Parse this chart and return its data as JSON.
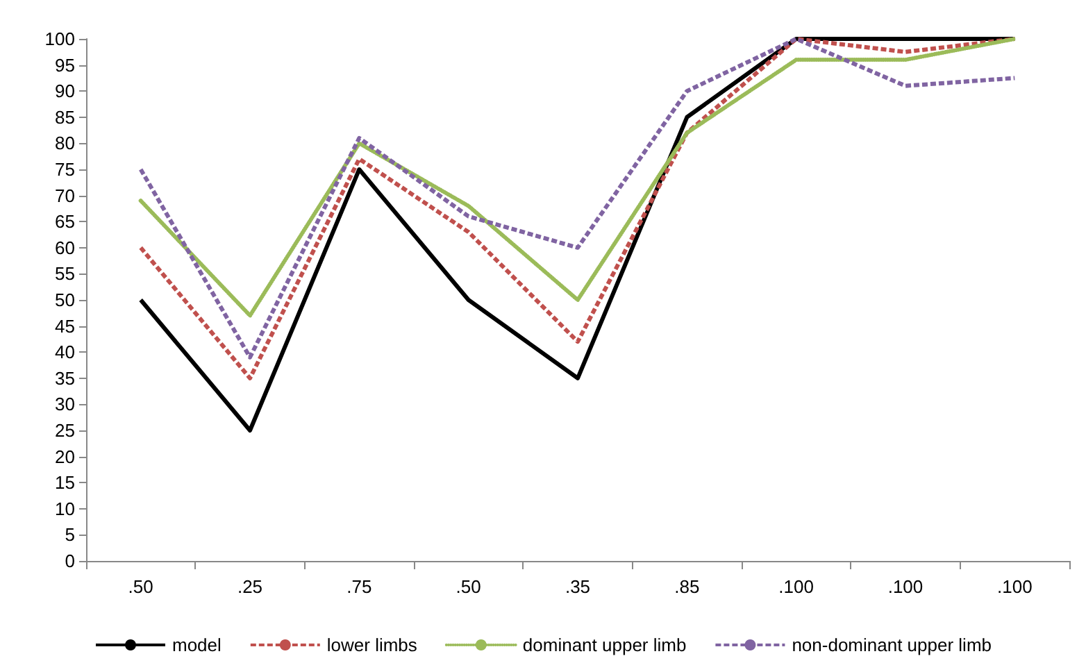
{
  "chart_data": {
    "type": "line",
    "categories": [
      ".50",
      ".25",
      ".75",
      ".50",
      ".35",
      ".85",
      ".100",
      ".100",
      ".100"
    ],
    "series": [
      {
        "name": "model",
        "color": "#000000",
        "line_style": "solid",
        "values": [
          50,
          25,
          75,
          50,
          35,
          85,
          100,
          100,
          100
        ]
      },
      {
        "name": "lower limbs",
        "color": "#c0504d",
        "line_style": "dashed",
        "values": [
          60,
          35,
          77,
          63,
          42,
          82,
          100,
          97.5,
          100
        ]
      },
      {
        "name": "dominant upper limb",
        "color": "#9bbb59",
        "line_style": "dotted",
        "values": [
          69,
          47,
          80,
          68,
          50,
          82,
          96,
          96,
          100
        ]
      },
      {
        "name": "non-dominant upper limb",
        "color": "#8064a2",
        "line_style": "dashed",
        "values": [
          75,
          39,
          81,
          66,
          60,
          90,
          100,
          91,
          92.5
        ]
      }
    ],
    "ylim": [
      0,
      100
    ],
    "yticks": [
      0,
      5,
      10,
      15,
      20,
      25,
      30,
      35,
      40,
      45,
      50,
      55,
      60,
      65,
      70,
      75,
      80,
      85,
      90,
      95,
      100
    ],
    "grid": false,
    "legend": "bottom",
    "marker": "none"
  }
}
